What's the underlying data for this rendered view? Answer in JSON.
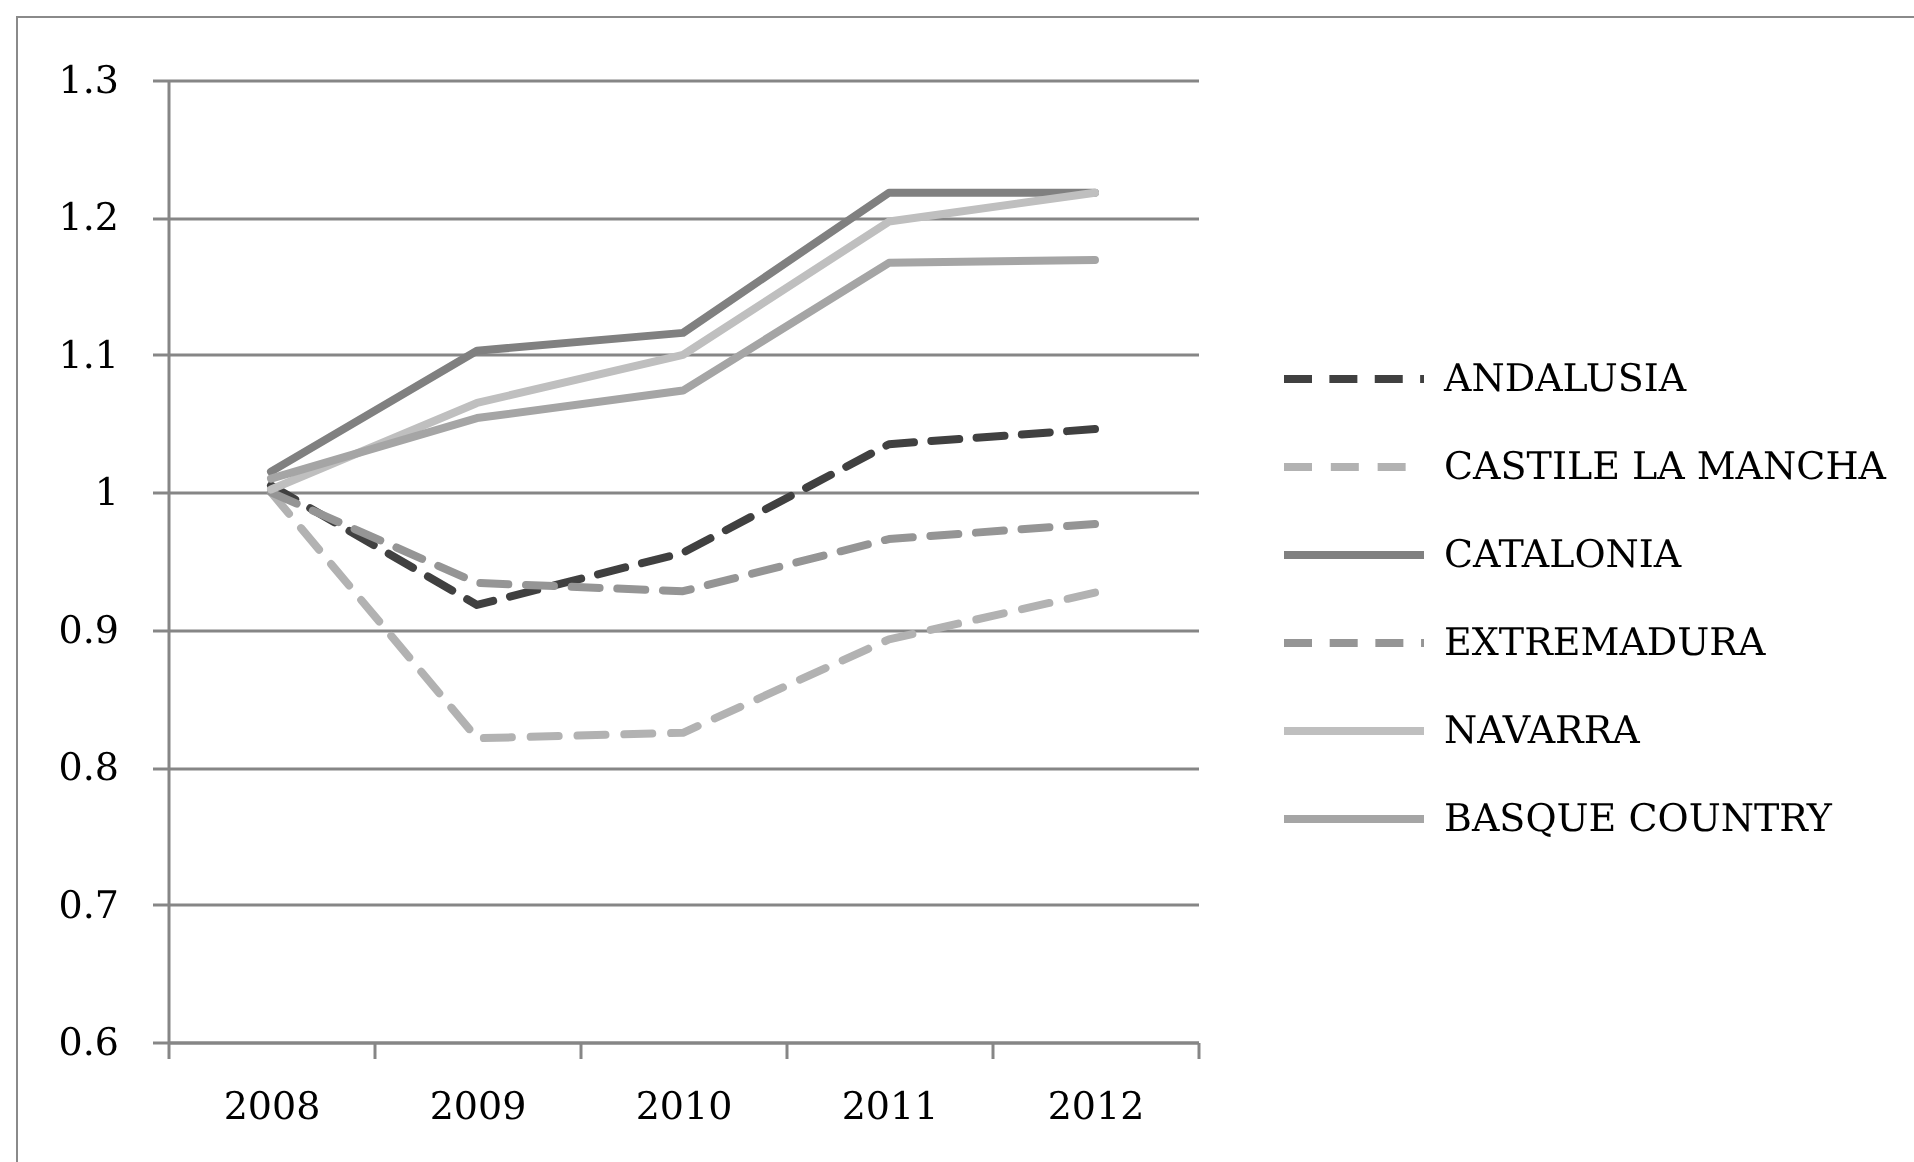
{
  "chart_data": {
    "type": "line",
    "categories": [
      "2008",
      "2009",
      "2010",
      "2011",
      "2012"
    ],
    "ylim": [
      0.6,
      1.3
    ],
    "yticks": [
      0.6,
      0.7,
      0.8,
      0.9,
      1,
      1.1,
      1.2,
      1.3
    ],
    "grid": "y",
    "legend": "right",
    "series": [
      {
        "name": "ANDALUSIA",
        "color": "#404040",
        "line_style": "dashed",
        "values": [
          1.005,
          0.918,
          0.956,
          1.035,
          1.046
        ]
      },
      {
        "name": "CASTILE LA MANCHA",
        "color": "#b2b2b2",
        "line_style": "dashed",
        "values": [
          1.0,
          0.821,
          0.825,
          0.893,
          0.927
        ]
      },
      {
        "name": "CATALONIA",
        "color": "#808080",
        "line_style": "solid",
        "values": [
          1.015,
          1.103,
          1.116,
          1.218,
          1.218
        ]
      },
      {
        "name": "EXTREMADURA",
        "color": "#959595",
        "line_style": "dashed",
        "values": [
          1.0,
          0.934,
          0.928,
          0.966,
          0.977
        ]
      },
      {
        "name": "NAVARRA",
        "color": "#bfbfbf",
        "line_style": "solid",
        "values": [
          1.002,
          1.065,
          1.1,
          1.197,
          1.218
        ]
      },
      {
        "name": "BASQUE COUNTRY",
        "color": "#a5a5a5",
        "line_style": "solid",
        "values": [
          1.01,
          1.054,
          1.074,
          1.167,
          1.169
        ]
      }
    ]
  }
}
